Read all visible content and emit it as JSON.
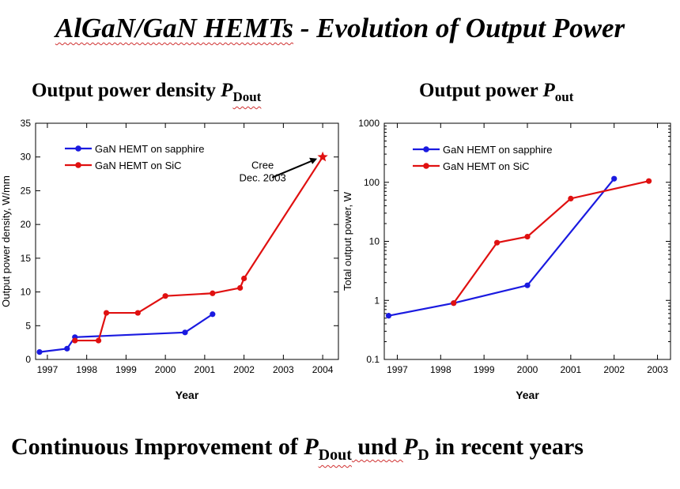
{
  "title_prefix": "AlGaN/GaN HEMTs",
  "title_suffix": " - Evolution of Output Power",
  "left_heading": {
    "text": "Output power density ",
    "symbol": "P",
    "subscript": "Dout"
  },
  "right_heading": {
    "text": "Output power ",
    "symbol": "P",
    "subscript": "out"
  },
  "footer": {
    "part1": "Continuous Improvement  of ",
    "sym1": "P",
    "sub1": "Dout",
    "part2": " und ",
    "sym2": "P",
    "sub2": "D",
    "part3": " in recent years"
  },
  "colors": {
    "sapphire": "#1a1ae0",
    "sic": "#e01010"
  },
  "chart_data": [
    {
      "type": "line",
      "xlabel": "Year",
      "ylabel": "Output power density, W/mm",
      "xlim": [
        1996.7,
        2004.4
      ],
      "ylim": [
        0,
        35
      ],
      "xticks": [
        1997,
        1998,
        1999,
        2000,
        2001,
        2002,
        2003,
        2004
      ],
      "yticks": [
        0,
        5,
        10,
        15,
        20,
        25,
        30,
        35
      ],
      "legend": "top-left",
      "series": [
        {
          "name": "GaN HEMT on sapphire",
          "color": "#1a1ae0",
          "marker": "circle",
          "x": [
            1996.8,
            1997.5,
            1997.7,
            2000.5,
            2001.2
          ],
          "y": [
            1.1,
            1.6,
            3.3,
            4.0,
            6.7
          ]
        },
        {
          "name": "GaN HEMT on SiC",
          "color": "#e01010",
          "marker": "circle",
          "x": [
            1997.7,
            1998.3,
            1998.5,
            1999.3,
            2000.0,
            2001.2,
            2001.9,
            2002.0,
            2004.0
          ],
          "y": [
            2.8,
            2.8,
            6.9,
            6.9,
            9.4,
            9.8,
            10.6,
            12.0,
            30.0
          ]
        }
      ],
      "annotations": [
        {
          "text_lines": [
            "Cree",
            "Dec. 2003"
          ],
          "point": [
            2004.0,
            30.0
          ],
          "marker": "star"
        }
      ]
    },
    {
      "type": "line",
      "xlabel": "Year",
      "ylabel": "Total output power, W",
      "xlim": [
        1996.7,
        2003.3
      ],
      "ylim": [
        0.1,
        1000
      ],
      "yscale": "log",
      "xticks": [
        1997,
        1998,
        1999,
        2000,
        2001,
        2002,
        2003
      ],
      "yticks": [
        0.1,
        1,
        10,
        100,
        1000
      ],
      "legend": "top-left",
      "series": [
        {
          "name": "GaN HEMT on sapphire",
          "color": "#1a1ae0",
          "marker": "circle",
          "x": [
            1996.8,
            1998.3,
            2000.0,
            2002.0
          ],
          "y": [
            0.55,
            0.9,
            1.8,
            115
          ]
        },
        {
          "name": "GaN HEMT on SiC",
          "color": "#e01010",
          "marker": "circle",
          "x": [
            1998.3,
            1999.3,
            2000.0,
            2001.0,
            2002.8
          ],
          "y": [
            0.9,
            9.5,
            12,
            53,
            105
          ]
        }
      ]
    }
  ]
}
